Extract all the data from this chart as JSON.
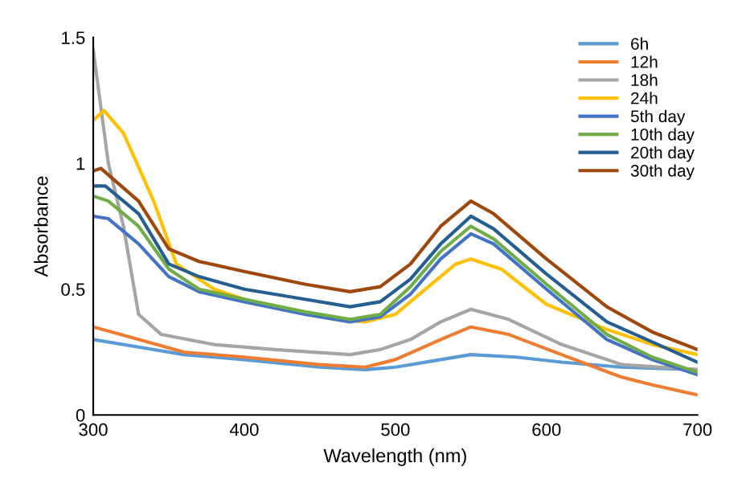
{
  "chart_data": {
    "type": "line",
    "xlabel": "Wavelength (nm)",
    "ylabel": "Absorbance",
    "xlim": [
      300,
      700
    ],
    "ylim": [
      0,
      1.5
    ],
    "xticks": [
      300,
      400,
      500,
      600,
      700
    ],
    "yticks": [
      0,
      0.5,
      1,
      1.5
    ],
    "grid": false,
    "legend": "top right",
    "marker": "none",
    "line_style": "solid",
    "series": [
      {
        "name": "6h",
        "color": "#5b9bd5",
        "x": [
          300,
          330,
          360,
          400,
          450,
          480,
          500,
          530,
          550,
          580,
          610,
          650,
          700
        ],
        "values": [
          0.3,
          0.27,
          0.24,
          0.22,
          0.19,
          0.18,
          0.19,
          0.22,
          0.24,
          0.23,
          0.21,
          0.19,
          0.18
        ]
      },
      {
        "name": "12h",
        "color": "#ed7d31",
        "x": [
          300,
          330,
          360,
          400,
          450,
          480,
          500,
          530,
          550,
          575,
          610,
          650,
          670,
          700
        ],
        "values": [
          0.35,
          0.3,
          0.25,
          0.23,
          0.2,
          0.19,
          0.22,
          0.3,
          0.35,
          0.32,
          0.24,
          0.15,
          0.12,
          0.08
        ]
      },
      {
        "name": "18h",
        "color": "#a5a5a5",
        "x": [
          300,
          310,
          320,
          330,
          345,
          380,
          420,
          470,
          490,
          510,
          530,
          550,
          575,
          610,
          650,
          700
        ],
        "values": [
          1.45,
          1.0,
          0.75,
          0.4,
          0.32,
          0.28,
          0.26,
          0.24,
          0.26,
          0.3,
          0.37,
          0.42,
          0.38,
          0.28,
          0.2,
          0.18
        ]
      },
      {
        "name": "24h",
        "color": "#ffc000",
        "x": [
          300,
          307,
          320,
          340,
          355,
          380,
          410,
          460,
          480,
          500,
          520,
          540,
          550,
          570,
          600,
          640,
          670,
          700
        ],
        "values": [
          1.17,
          1.21,
          1.12,
          0.85,
          0.6,
          0.5,
          0.44,
          0.38,
          0.37,
          0.4,
          0.5,
          0.6,
          0.62,
          0.58,
          0.44,
          0.34,
          0.28,
          0.24
        ]
      },
      {
        "name": "5th day",
        "color": "#4472c4",
        "x": [
          300,
          310,
          330,
          350,
          370,
          400,
          440,
          470,
          490,
          510,
          530,
          550,
          565,
          600,
          640,
          670,
          700
        ],
        "values": [
          0.79,
          0.78,
          0.68,
          0.55,
          0.49,
          0.45,
          0.4,
          0.37,
          0.39,
          0.48,
          0.62,
          0.72,
          0.68,
          0.5,
          0.3,
          0.22,
          0.16
        ]
      },
      {
        "name": "10th day",
        "color": "#70ad47",
        "x": [
          300,
          310,
          330,
          350,
          370,
          400,
          440,
          470,
          490,
          510,
          530,
          550,
          565,
          600,
          640,
          670,
          700
        ],
        "values": [
          0.87,
          0.85,
          0.75,
          0.58,
          0.5,
          0.46,
          0.41,
          0.38,
          0.4,
          0.51,
          0.65,
          0.75,
          0.7,
          0.52,
          0.32,
          0.23,
          0.17
        ]
      },
      {
        "name": "20th day",
        "color": "#255e91",
        "x": [
          300,
          308,
          330,
          350,
          370,
          400,
          440,
          470,
          490,
          510,
          530,
          550,
          565,
          600,
          640,
          670,
          700
        ],
        "values": [
          0.91,
          0.91,
          0.8,
          0.6,
          0.55,
          0.5,
          0.46,
          0.43,
          0.45,
          0.54,
          0.68,
          0.79,
          0.74,
          0.56,
          0.37,
          0.29,
          0.21
        ]
      },
      {
        "name": "30th day",
        "color": "#9e480e",
        "x": [
          300,
          305,
          330,
          350,
          370,
          400,
          440,
          470,
          490,
          510,
          530,
          550,
          565,
          600,
          640,
          670,
          700
        ],
        "values": [
          0.97,
          0.98,
          0.85,
          0.66,
          0.61,
          0.57,
          0.52,
          0.49,
          0.51,
          0.6,
          0.75,
          0.85,
          0.8,
          0.62,
          0.43,
          0.33,
          0.26
        ]
      }
    ]
  }
}
